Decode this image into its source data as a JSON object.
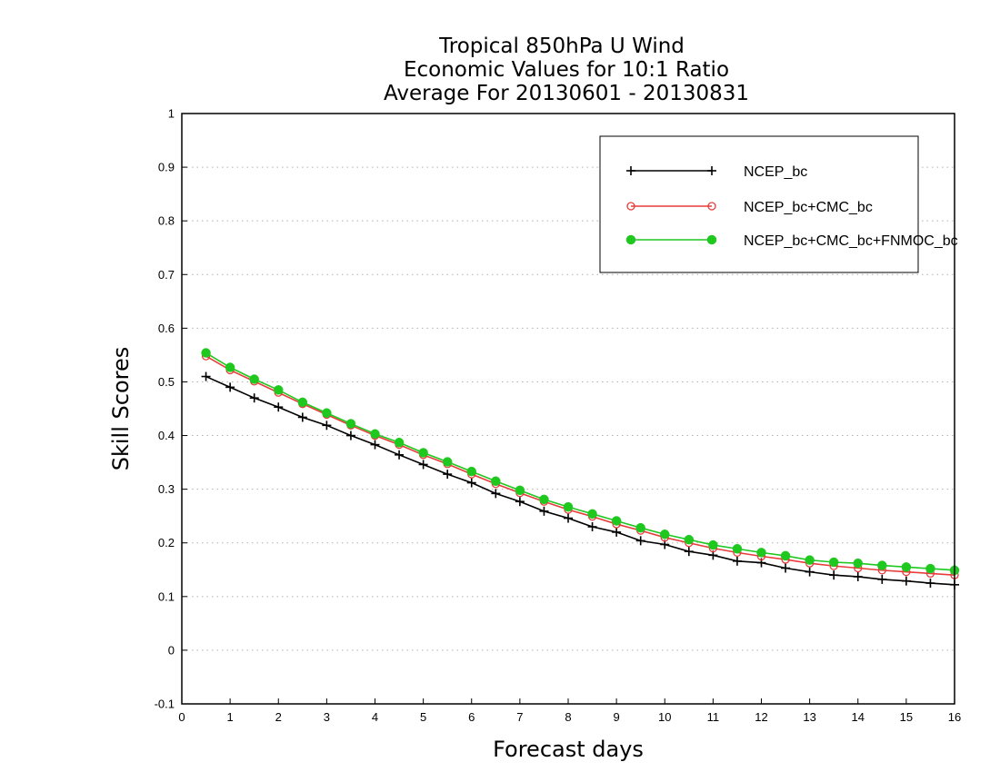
{
  "chart_data": {
    "type": "line",
    "title": [
      "Tropical 850hPa U Wind",
      "Economic Values for 10:1 Ratio",
      "Average For 20130601 - 20130831"
    ],
    "xlabel": "Forecast days",
    "ylabel": "Skill Scores",
    "xlim": [
      0,
      16
    ],
    "ylim": [
      -0.1,
      1
    ],
    "xticks": [
      "0",
      "1",
      "2",
      "3",
      "4",
      "5",
      "6",
      "7",
      "8",
      "9",
      "10",
      "11",
      "12",
      "13",
      "14",
      "15",
      "16"
    ],
    "yticks": [
      "-0.1",
      "0",
      "0.1",
      "0.2",
      "0.3",
      "0.4",
      "0.5",
      "0.6",
      "0.7",
      "0.8",
      "0.9",
      "1"
    ],
    "grid": "horizontal dotted",
    "legend_position": "top-right",
    "x": [
      0.5,
      1,
      1.5,
      2,
      2.5,
      3,
      3.5,
      4,
      4.5,
      5,
      5.5,
      6,
      6.5,
      7,
      7.5,
      8,
      8.5,
      9,
      9.5,
      10,
      10.5,
      11,
      11.5,
      12,
      12.5,
      13,
      13.5,
      14,
      14.5,
      15,
      15.5,
      16
    ],
    "series": [
      {
        "name": "NCEP_bc",
        "color": "#000000",
        "marker": "plus",
        "values": [
          0.51,
          0.49,
          0.47,
          0.453,
          0.434,
          0.419,
          0.4,
          0.383,
          0.364,
          0.346,
          0.328,
          0.312,
          0.292,
          0.277,
          0.259,
          0.246,
          0.23,
          0.22,
          0.204,
          0.197,
          0.184,
          0.177,
          0.166,
          0.163,
          0.153,
          0.146,
          0.14,
          0.137,
          0.132,
          0.129,
          0.125,
          0.122
        ]
      },
      {
        "name": "NCEP_bc+CMC_bc",
        "color": "#e83c3c",
        "marker": "open-circle",
        "values": [
          0.548,
          0.522,
          0.501,
          0.48,
          0.459,
          0.439,
          0.419,
          0.4,
          0.383,
          0.364,
          0.347,
          0.328,
          0.31,
          0.293,
          0.277,
          0.262,
          0.249,
          0.235,
          0.223,
          0.21,
          0.2,
          0.19,
          0.182,
          0.175,
          0.169,
          0.162,
          0.157,
          0.153,
          0.149,
          0.146,
          0.143,
          0.14
        ]
      },
      {
        "name": "NCEP_bc+CMC_bc+FNMOC_bc",
        "color": "#1ec81e",
        "marker": "filled-circle",
        "values": [
          0.554,
          0.527,
          0.505,
          0.485,
          0.462,
          0.442,
          0.422,
          0.403,
          0.387,
          0.368,
          0.351,
          0.333,
          0.315,
          0.298,
          0.281,
          0.267,
          0.254,
          0.241,
          0.228,
          0.216,
          0.206,
          0.196,
          0.189,
          0.182,
          0.176,
          0.168,
          0.164,
          0.162,
          0.158,
          0.155,
          0.152,
          0.149
        ]
      }
    ]
  }
}
